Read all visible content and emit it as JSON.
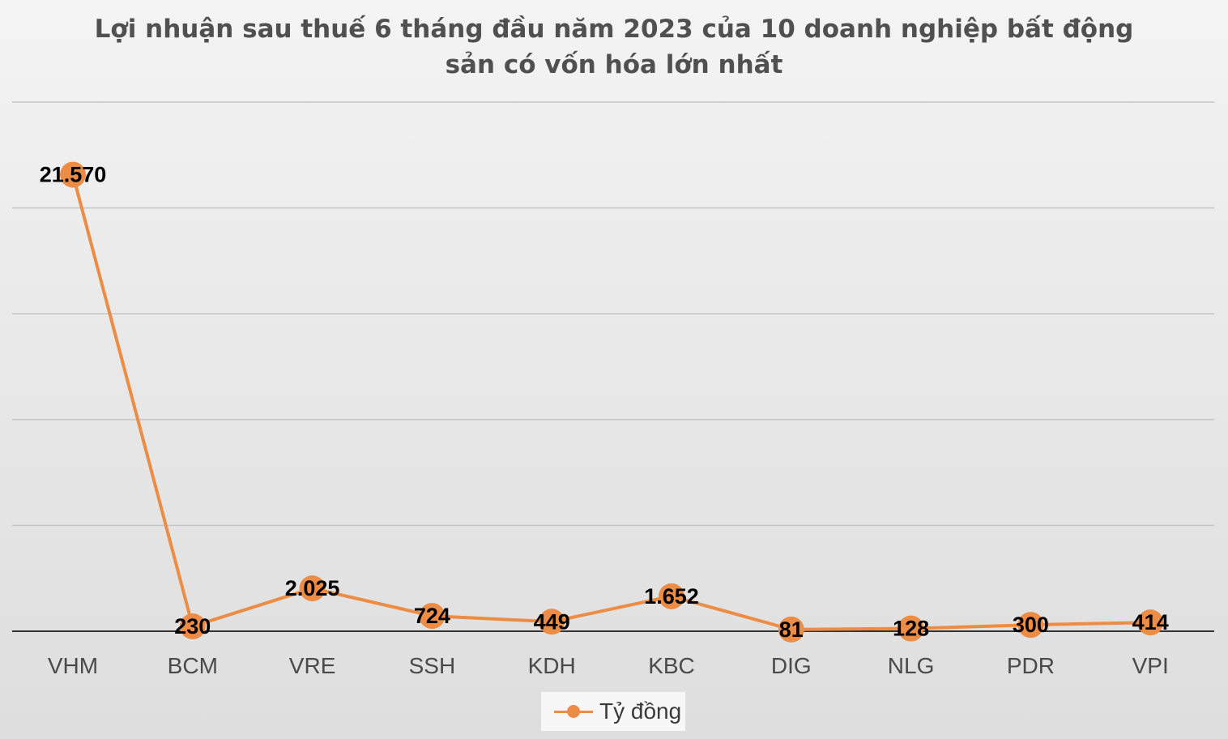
{
  "chart_data": {
    "type": "line",
    "title_lines": [
      "Lợi nhuận sau thuế 6 tháng đầu năm 2023 của 10 doanh nghiệp bất động",
      "sản có vốn hóa lớn nhất"
    ],
    "categories": [
      "VHM",
      "BCM",
      "VRE",
      "SSH",
      "KDH",
      "KBC",
      "DIG",
      "NLG",
      "PDR",
      "VPI"
    ],
    "series": [
      {
        "name": "Tỷ đồng",
        "values": [
          21570,
          230,
          2025,
          724,
          449,
          1652,
          81,
          128,
          300,
          414
        ],
        "labels": [
          "21.570",
          "230",
          "2.025",
          "724",
          "449",
          "1.652",
          "81",
          "128",
          "300",
          "414"
        ]
      }
    ],
    "ylim": [
      0,
      25000
    ],
    "y_gridline_step": 5000,
    "grid": true,
    "y_tick_labels_visible": false,
    "legend_position": "bottom",
    "colors": {
      "series": "#ec8c45",
      "gridline": "#c4c4c4",
      "axis": "#333333",
      "data_label": "#000000",
      "tick_label": "#4a4a4a"
    }
  }
}
